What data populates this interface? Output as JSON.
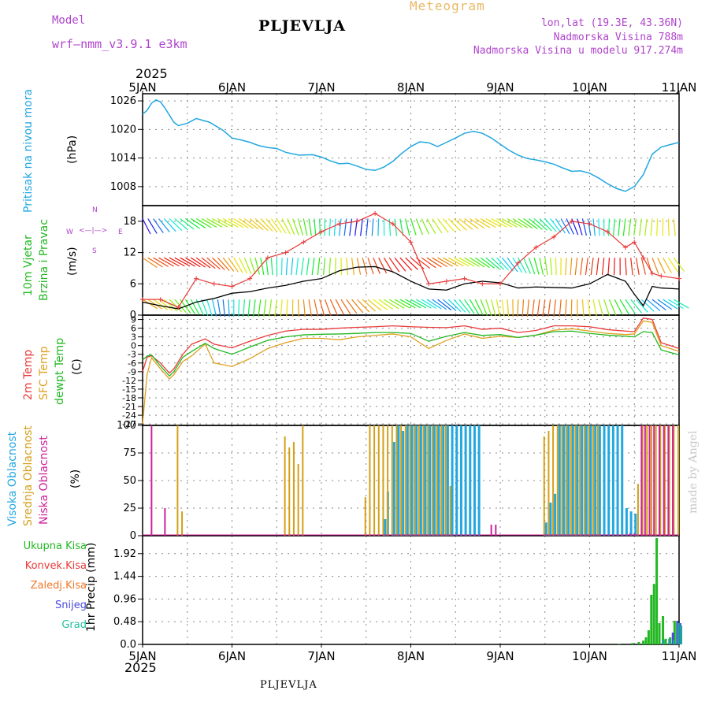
{
  "header": {
    "model_label": "Model",
    "model_name": "wrf—nmm_v3.9.1 e3km",
    "station": "PLJEVLJA",
    "product": "Meteogram",
    "lonlat": "lon,lat (19.3E, 43.36N)",
    "elevation": "Nadmorska Visina 788m",
    "model_elevation": "Nadmorska Visina u modelu 917.274m"
  },
  "footer": {
    "station": "PLJEVLJA",
    "credit": "made by Angel"
  },
  "colors": {
    "pressure": "#22a7e0",
    "wind_label": "#22b822",
    "temp": "#e83a3a",
    "sfc": "#e0a020",
    "dew": "#22b822",
    "cloud_high": "#22a7e0",
    "cloud_mid": "#d4a017",
    "cloud_low": "#cc2299",
    "header_purple": "#b044cc",
    "header_orange": "#e8b866"
  },
  "time_axis": {
    "year": "2025",
    "labels": [
      "5JAN",
      "6JAN",
      "7JAN",
      "8JAN",
      "9JAN",
      "10JAN",
      "11JAN"
    ]
  },
  "panel_labels": {
    "pressure": [
      "Pritisak na nivou mora",
      "(hPa)"
    ],
    "wind": [
      "10m Vjetar",
      "Brzina i Pravac",
      "(m/s)"
    ],
    "compass": {
      "n": "N",
      "s": "S",
      "w": "W",
      "e": "E",
      "arrows": "<—|—>"
    },
    "temp": [
      "2m Temp",
      "SFC Temp",
      "dewpt Temp",
      "(C)"
    ],
    "cloud": [
      "Visoka Oblacnost",
      "Srednja Oblacnost",
      "Niska Oblacnost",
      "(%)"
    ],
    "precip_axis": "1hr Precip (mm)",
    "precip_legend": [
      "Ukupna Kisa",
      "Konvek.Kisa",
      "Zaledj.Kisa",
      "Snijeg",
      "Grad"
    ]
  },
  "chart_data": [
    {
      "type": "line",
      "title": "Pritisak na nivou mora",
      "ylabel": "(hPa)",
      "ylim": [
        1004,
        1027.5
      ],
      "yticks": [
        1008,
        1014,
        1020,
        1026
      ],
      "series": [
        {
          "name": "MSLP",
          "x": [
            0,
            0.05,
            0.1,
            0.15,
            0.2,
            0.25,
            0.3,
            0.35,
            0.4,
            0.5,
            0.6,
            0.75,
            0.9,
            1.0,
            1.1,
            1.2,
            1.3,
            1.4,
            1.5,
            1.6,
            1.75,
            1.9,
            2.0,
            2.1,
            2.2,
            2.3,
            2.4,
            2.5,
            2.6,
            2.7,
            2.8,
            2.9,
            3.0,
            3.1,
            3.2,
            3.3,
            3.4,
            3.5,
            3.6,
            3.7,
            3.8,
            3.9,
            4.0,
            4.1,
            4.2,
            4.3,
            4.4,
            4.5,
            4.6,
            4.7,
            4.8,
            4.9,
            5.0,
            5.1,
            5.2,
            5.3,
            5.4,
            5.5,
            5.6,
            5.7,
            5.8,
            5.9,
            6.0
          ],
          "values": [
            1023.2,
            1024,
            1025.5,
            1026.2,
            1025.8,
            1024.5,
            1023,
            1021.5,
            1020.8,
            1021.3,
            1022.3,
            1021.5,
            1019.8,
            1018.2,
            1017.8,
            1017.3,
            1016.6,
            1016.2,
            1016,
            1015.2,
            1014.6,
            1014.7,
            1014.2,
            1013.4,
            1012.8,
            1012.9,
            1012.3,
            1011.6,
            1011.4,
            1012.1,
            1013.3,
            1015.0,
            1016.4,
            1017.4,
            1017.2,
            1016.4,
            1017.3,
            1018.2,
            1019.2,
            1019.6,
            1019.2,
            1018.2,
            1016.9,
            1015.6,
            1014.6,
            1013.9,
            1013.6,
            1013.2,
            1012.7,
            1011.9,
            1011.2,
            1011.3,
            1010.8,
            1009.8,
            1008.6,
            1007.6,
            1007.0,
            1008.0,
            1010.5,
            1014.8,
            1016.3,
            1016.8,
            1017.3
          ]
        }
      ]
    },
    {
      "type": "line",
      "title": "10m Vjetar Brzina i Pravac",
      "ylabel": "(m/s)",
      "ylim": [
        0,
        21
      ],
      "yticks": [
        0,
        6,
        12,
        18
      ],
      "x": [
        0,
        0.2,
        0.4,
        0.6,
        0.8,
        1.0,
        1.2,
        1.4,
        1.6,
        1.8,
        2.0,
        2.2,
        2.4,
        2.6,
        2.8,
        3.0,
        3.2,
        3.4,
        3.6,
        3.8,
        4.0,
        4.2,
        4.4,
        4.6,
        4.8,
        5.0,
        5.2,
        5.4,
        5.5,
        5.6,
        5.7,
        5.8,
        6.0
      ],
      "series": [
        {
          "name": "speed_mean",
          "values": [
            2.5,
            1.8,
            1.2,
            2.5,
            3.2,
            4.2,
            4.5,
            5.2,
            5.7,
            6.5,
            7.0,
            8.5,
            9.2,
            9.3,
            8.3,
            6.5,
            5.0,
            4.8,
            6.0,
            6.5,
            6.2,
            5.2,
            5.4,
            5.3,
            5.2,
            6.0,
            7.8,
            6.5,
            4.0,
            1.8,
            5.5,
            5.2,
            5.0
          ]
        },
        {
          "name": "gust",
          "values": [
            3,
            3,
            1.5,
            7,
            6,
            5.5,
            7,
            11,
            12,
            14,
            16,
            17.5,
            18,
            19.5,
            17.5,
            14,
            6,
            6.5,
            7,
            6,
            6,
            10,
            13,
            15,
            18,
            17.5,
            16,
            13,
            14,
            11,
            8,
            7.5,
            7
          ]
        }
      ]
    },
    {
      "type": "line",
      "title": "Temperature",
      "ylabel": "(C)",
      "ylim": [
        -27.5,
        10.5
      ],
      "yticks": [
        9,
        6,
        3,
        0,
        -3,
        -6,
        -9,
        -12,
        -15,
        -18,
        -21,
        -24,
        -27
      ],
      "x": [
        0,
        0.05,
        0.1,
        0.2,
        0.3,
        0.35,
        0.45,
        0.55,
        0.7,
        0.8,
        1.0,
        1.2,
        1.4,
        1.6,
        1.8,
        2.0,
        2.2,
        2.4,
        2.6,
        2.8,
        3.0,
        3.2,
        3.4,
        3.6,
        3.8,
        4.0,
        4.2,
        4.4,
        4.6,
        4.8,
        5.0,
        5.2,
        5.4,
        5.5,
        5.6,
        5.7,
        5.8,
        6.0
      ],
      "series": [
        {
          "name": "2m Temp",
          "values": [
            -9,
            -4,
            -3.5,
            -6,
            -9.5,
            -8,
            -3,
            0.5,
            2.3,
            0.5,
            -0.8,
            1.5,
            3.5,
            5.0,
            5.6,
            5.6,
            6.0,
            6.3,
            6.5,
            6.8,
            6.5,
            6.3,
            6.2,
            6.8,
            5.6,
            6.0,
            4.5,
            5.2,
            6.8,
            6.8,
            6.5,
            5.5,
            5.0,
            4.8,
            9.5,
            9.0,
            1.0,
            -1.0
          ]
        },
        {
          "name": "SFC Temp",
          "values": [
            -27,
            -10,
            -4.2,
            -8,
            -11.5,
            -10,
            -5.5,
            -3.5,
            0.5,
            -6,
            -7.2,
            -4.5,
            -1.0,
            1.0,
            2.5,
            2.5,
            2.0,
            3.0,
            3.5,
            4.0,
            3.0,
            -1.0,
            1.8,
            4.0,
            2.5,
            3.2,
            2.8,
            3.6,
            5.3,
            5.8,
            5.0,
            4.2,
            3.8,
            4.0,
            8.5,
            8.0,
            0,
            -2.0
          ]
        },
        {
          "name": "dewpt Temp",
          "values": [
            -5,
            -3.6,
            -3.2,
            -7,
            -10.5,
            -9,
            -4,
            -2,
            0.8,
            -1.0,
            -3.0,
            -0.5,
            1.8,
            3.0,
            3.7,
            3.9,
            4.0,
            4.2,
            4.5,
            4.5,
            4.2,
            1.5,
            3.2,
            4.5,
            3.5,
            3.8,
            2.8,
            3.6,
            4.8,
            5.0,
            4.2,
            3.6,
            3.2,
            3.0,
            4.8,
            4.5,
            -1.5,
            -3.2
          ]
        }
      ]
    },
    {
      "type": "bar",
      "title": "Oblacnost",
      "ylabel": "(%)",
      "ylim": [
        0,
        100
      ],
      "yticks": [
        0,
        25,
        50,
        75,
        100
      ],
      "series": [
        {
          "name": "Visoka Oblacnost",
          "x": [
            2.7,
            2.73,
            2.8,
            2.85,
            2.9,
            2.95,
            3.0,
            3.05,
            3.1,
            3.15,
            3.2,
            3.25,
            3.3,
            3.35,
            3.4,
            3.45,
            3.5,
            3.55,
            3.6,
            3.65,
            3.7,
            3.75,
            4.5,
            4.55,
            4.6,
            4.65,
            4.7,
            4.75,
            4.8,
            4.85,
            4.9,
            4.95,
            5.0,
            5.05,
            5.1,
            5.15,
            5.2,
            5.25,
            5.3,
            5.35,
            5.4,
            5.45,
            5.5
          ],
          "values": [
            15,
            40,
            85,
            100,
            95,
            100,
            100,
            100,
            100,
            100,
            100,
            100,
            100,
            100,
            100,
            100,
            100,
            100,
            100,
            100,
            100,
            100,
            12,
            30,
            38,
            100,
            100,
            100,
            100,
            100,
            100,
            100,
            100,
            100,
            100,
            100,
            100,
            100,
            100,
            100,
            25,
            22,
            20
          ]
        },
        {
          "name": "Srednja Oblacnost",
          "x": [
            0.4,
            0.45,
            1.6,
            1.65,
            1.7,
            1.75,
            1.8,
            2.5,
            2.55,
            2.6,
            2.65,
            2.7,
            2.75,
            2.8,
            2.85,
            2.9,
            2.95,
            3.0,
            3.05,
            3.1,
            3.15,
            3.2,
            3.25,
            3.3,
            3.35,
            3.4,
            3.45,
            4.5,
            4.55,
            4.6,
            4.65,
            4.7,
            4.75,
            4.8,
            4.85,
            4.9,
            4.95,
            5.0,
            5.05,
            5.1,
            5.55,
            5.6,
            5.65,
            5.7,
            5.75,
            5.8,
            5.85,
            5.9,
            5.95,
            6.0
          ],
          "values": [
            100,
            22,
            90,
            80,
            85,
            65,
            100,
            35,
            100,
            100,
            100,
            100,
            100,
            100,
            100,
            100,
            100,
            100,
            100,
            100,
            100,
            100,
            100,
            100,
            100,
            100,
            45,
            90,
            95,
            100,
            100,
            100,
            100,
            100,
            100,
            100,
            100,
            100,
            100,
            100,
            47,
            100,
            100,
            100,
            100,
            100,
            100,
            100,
            100,
            100
          ]
        },
        {
          "name": "Niska Oblacnost",
          "x": [
            0.1,
            0.25,
            3.9,
            3.95,
            5.45,
            5.5,
            5.58,
            5.62,
            5.67,
            5.72,
            5.78,
            5.83,
            5.88,
            5.93
          ],
          "values": [
            100,
            25,
            10,
            10,
            2,
            2,
            100,
            100,
            100,
            100,
            100,
            100,
            100,
            100
          ]
        }
      ]
    },
    {
      "type": "bar",
      "title": "1hr Precip (mm)",
      "ylabel": "1hr Precip (mm)",
      "ylim": [
        0,
        2.3
      ],
      "yticks": [
        0,
        0.48,
        0.96,
        1.44,
        1.92
      ],
      "series": [
        {
          "name": "Ukupna Kisa",
          "x": [
            5.33,
            5.48,
            5.55,
            5.6,
            5.63,
            5.66,
            5.69,
            5.72,
            5.75,
            5.78,
            5.82,
            5.85,
            5.9,
            5.95,
            5.98
          ],
          "values": [
            0.01,
            0.03,
            0.05,
            0.08,
            0.15,
            0.3,
            1.05,
            1.28,
            2.25,
            0.45,
            0.6,
            0.12,
            0.15,
            0.5,
            0.45
          ]
        },
        {
          "name": "Konvek.Kisa",
          "x": [],
          "values": []
        },
        {
          "name": "Zaledj.Kisa",
          "x": [],
          "values": []
        },
        {
          "name": "Snijeg",
          "x": [
            5.9,
            5.95,
            5.98
          ],
          "values": [
            0.25,
            0.5,
            0.45
          ]
        },
        {
          "name": "Grad",
          "x": [
            5.78,
            5.85,
            5.9,
            5.95,
            5.98
          ],
          "values": [
            0.1,
            0.12,
            0.1,
            0.45,
            0.4
          ]
        }
      ]
    }
  ]
}
